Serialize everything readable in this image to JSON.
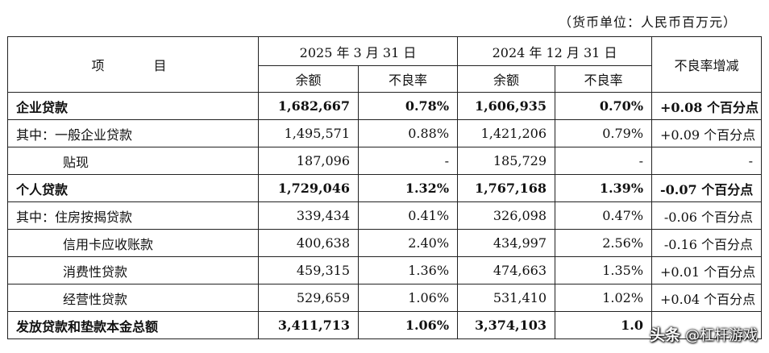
{
  "unit_note": "（货币单位：人民币百万元）",
  "header": {
    "item": "项 目",
    "date1": "2025 年 3 月 31 日",
    "date2": "2024 年 12 月 31 日",
    "change": "不良率增减",
    "balance": "余额",
    "npl": "不良率"
  },
  "rows": [
    {
      "label": "企业贷款",
      "bal1": "1,682,667",
      "npl1": "0.78%",
      "bal2": "1,606,935",
      "npl2": "0.70%",
      "change": "+0.08 个百分点"
    },
    {
      "label": "其中：一般企业贷款",
      "bal1": "1,495,571",
      "npl1": "0.88%",
      "bal2": "1,421,206",
      "npl2": "0.79%",
      "change": "+0.09 个百分点"
    },
    {
      "label": "贴现",
      "bal1": "187,096",
      "npl1": "-",
      "bal2": "185,729",
      "npl2": "-",
      "change": "-"
    },
    {
      "label": "个人贷款",
      "bal1": "1,729,046",
      "npl1": "1.32%",
      "bal2": "1,767,168",
      "npl2": "1.39%",
      "change": "-0.07 个百分点"
    },
    {
      "label": "其中：住房按揭贷款",
      "bal1": "339,434",
      "npl1": "0.41%",
      "bal2": "326,098",
      "npl2": "0.47%",
      "change": "-0.06 个百分点"
    },
    {
      "label": "信用卡应收账款",
      "bal1": "400,638",
      "npl1": "2.40%",
      "bal2": "434,997",
      "npl2": "2.56%",
      "change": "-0.16 个百分点"
    },
    {
      "label": "消费性贷款",
      "bal1": "459,315",
      "npl1": "1.36%",
      "bal2": "474,663",
      "npl2": "1.35%",
      "change": "+0.01 个百分点"
    },
    {
      "label": "经营性贷款",
      "bal1": "529,659",
      "npl1": "1.06%",
      "bal2": "531,410",
      "npl2": "1.02%",
      "change": "+0.04 个百分点"
    },
    {
      "label": "发放贷款和垫款本金总额",
      "bal1": "3,411,713",
      "npl1": "1.06%",
      "bal2": "3,374,103",
      "npl2": "1.0",
      "change": ""
    }
  ],
  "watermark": {
    "logo": "头条",
    "handle": "@杠杆游戏"
  }
}
